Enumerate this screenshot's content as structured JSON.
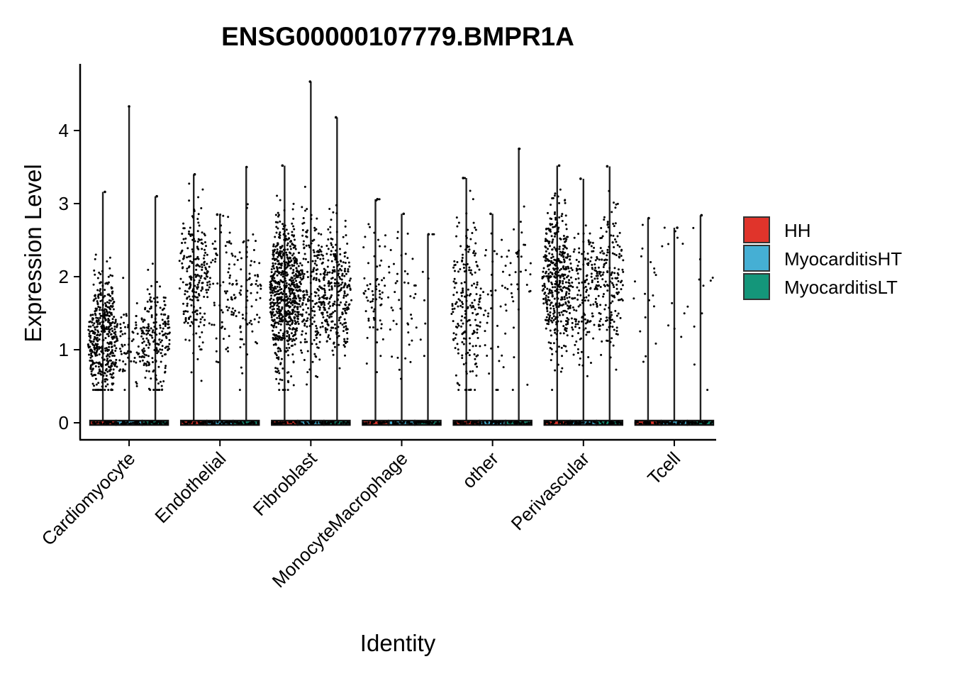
{
  "chart_data": {
    "type": "violin",
    "title": "ENSG00000107779.BMPR1A",
    "xlabel": "Identity",
    "ylabel": "Expression Level",
    "ylim": [
      -0.25,
      4.9
    ],
    "yticks": [
      "0",
      "1",
      "2",
      "3",
      "4"
    ],
    "categories": [
      "Cardiomyocyte",
      "Endothelial",
      "Fibroblast",
      "MonocyteMacrophage",
      "other",
      "Perivascular",
      "Tcell"
    ],
    "series": [
      {
        "name": "HH",
        "color": "#E0342B",
        "max": [
          3.16,
          3.4,
          3.52,
          3.06,
          3.35,
          3.52,
          2.8
        ],
        "center": [
          1.15,
          2.0,
          1.75,
          1.85,
          1.6,
          1.95,
          1.9
        ],
        "spread": [
          0.4,
          0.5,
          0.5,
          0.5,
          0.6,
          0.5,
          0.6
        ],
        "n": [
          450,
          220,
          650,
          70,
          200,
          420,
          18
        ]
      },
      {
        "name": "MyocarditisHT",
        "color": "#45AFD4",
        "max": [
          4.33,
          2.85,
          4.67,
          2.86,
          2.86,
          3.34,
          2.67
        ],
        "center": [
          1.0,
          1.95,
          1.8,
          1.75,
          1.5,
          1.8,
          1.9
        ],
        "spread": [
          0.3,
          0.5,
          0.5,
          0.6,
          0.6,
          0.45,
          0.6
        ],
        "n": [
          80,
          80,
          250,
          40,
          40,
          160,
          12
        ]
      },
      {
        "name": "MyocarditisLT",
        "color": "#14967A",
        "max": [
          3.1,
          3.5,
          4.18,
          2.58,
          3.75,
          3.51,
          2.84
        ],
        "center": [
          1.2,
          1.8,
          1.8,
          1.8,
          1.8,
          1.95,
          1.5
        ],
        "spread": [
          0.35,
          0.5,
          0.45,
          0.5,
          0.7,
          0.45,
          0.6
        ],
        "n": [
          200,
          90,
          260,
          12,
          40,
          180,
          10
        ]
      }
    ],
    "legend_position": "right",
    "grid": false
  }
}
